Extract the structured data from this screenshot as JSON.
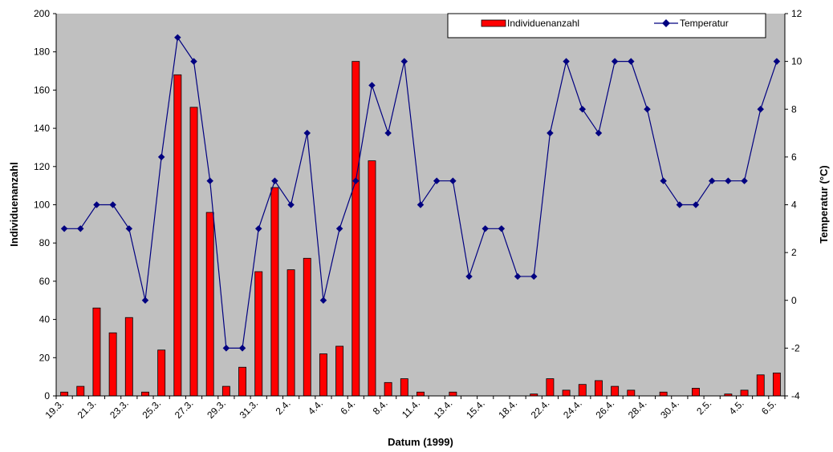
{
  "chart_data": {
    "type": "bar+line",
    "xlabel": "Datum (1999)",
    "ylabel_left": "Individuenanzahl",
    "ylabel_right": "Temperatur (°C)",
    "ylim_left": [
      0,
      200
    ],
    "ylim_right": [
      -4,
      12
    ],
    "yticks_left": [
      0,
      20,
      40,
      60,
      80,
      100,
      120,
      140,
      160,
      180,
      200
    ],
    "yticks_right": [
      -4,
      -2,
      0,
      2,
      4,
      6,
      8,
      10,
      12
    ],
    "legend_position": "top-right",
    "categories_count": 45,
    "x_tick_labels": [
      {
        "index": 0,
        "label": "19.3."
      },
      {
        "index": 2,
        "label": "21.3."
      },
      {
        "index": 4,
        "label": "23.3."
      },
      {
        "index": 6,
        "label": "25.3."
      },
      {
        "index": 8,
        "label": "27.3."
      },
      {
        "index": 10,
        "label": "29.3."
      },
      {
        "index": 12,
        "label": "31.3."
      },
      {
        "index": 14,
        "label": "2.4."
      },
      {
        "index": 16,
        "label": "4.4."
      },
      {
        "index": 18,
        "label": "6.4."
      },
      {
        "index": 20,
        "label": "8.4."
      },
      {
        "index": 22,
        "label": "11.4."
      },
      {
        "index": 24,
        "label": "13.4."
      },
      {
        "index": 26,
        "label": "15.4."
      },
      {
        "index": 28,
        "label": "18.4."
      },
      {
        "index": 30,
        "label": "22.4."
      },
      {
        "index": 32,
        "label": "24.4."
      },
      {
        "index": 34,
        "label": "26.4."
      },
      {
        "index": 36,
        "label": "28.4."
      },
      {
        "index": 38,
        "label": "30.4."
      },
      {
        "index": 40,
        "label": "2.5."
      },
      {
        "index": 42,
        "label": "4.5."
      },
      {
        "index": 44,
        "label": "6.5."
      }
    ],
    "series": [
      {
        "name": "Individuenanzahl",
        "type": "bar",
        "axis": "left",
        "color": "#ff0000",
        "values": [
          2,
          5,
          46,
          33,
          41,
          2,
          24,
          168,
          151,
          96,
          5,
          15,
          65,
          109,
          66,
          72,
          22,
          26,
          175,
          123,
          7,
          9,
          2,
          0,
          2,
          0,
          0,
          0,
          0,
          1,
          9,
          3,
          6,
          8,
          5,
          3,
          0,
          2,
          0,
          4,
          0,
          1,
          3,
          11,
          12
        ]
      },
      {
        "name": "Temperatur",
        "type": "line",
        "axis": "right",
        "color": "#000080",
        "values": [
          3,
          3,
          4,
          4,
          3,
          0,
          6,
          11,
          10,
          5,
          -2,
          -2,
          3,
          5,
          4,
          7,
          0,
          3,
          5,
          9,
          7,
          10,
          4,
          5,
          5,
          1,
          3,
          3,
          1,
          1,
          7,
          10,
          8,
          7,
          10,
          10,
          8,
          5,
          4,
          4,
          5,
          5,
          5,
          8,
          10
        ]
      }
    ]
  },
  "colors": {
    "plot_background": "#c0c0c0",
    "bar_fill": "#ff0000",
    "line": "#000080"
  }
}
